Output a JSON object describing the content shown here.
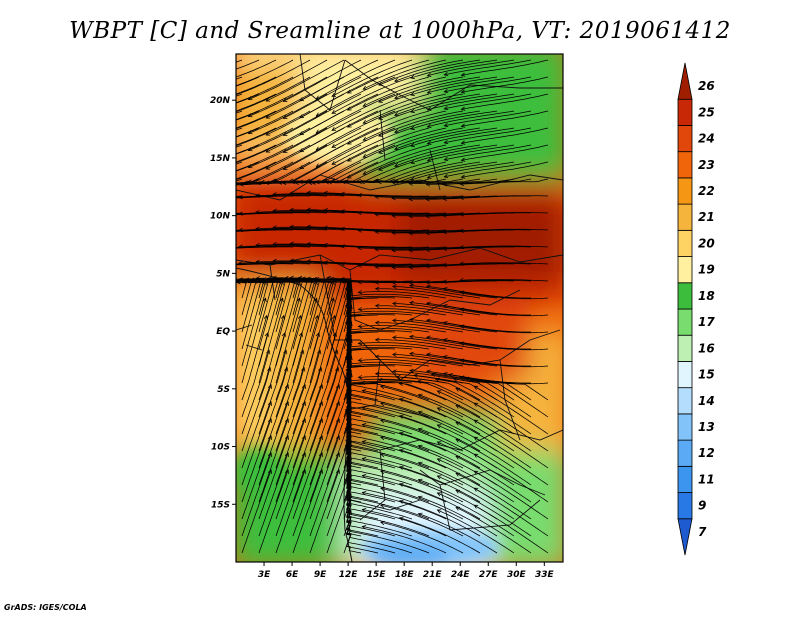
{
  "title": "WBPT [C] and Sreamline at 1000hPa, VT: 2019061412",
  "footer": "GrADS: IGES/COLA",
  "map": {
    "lon_range": [
      0,
      35
    ],
    "lat_range": [
      -20,
      24
    ],
    "y_ticks": [
      {
        "lat": 20,
        "label": "20N"
      },
      {
        "lat": 15,
        "label": "15N"
      },
      {
        "lat": 10,
        "label": "10N"
      },
      {
        "lat": 5,
        "label": "5N"
      },
      {
        "lat": 0,
        "label": "EQ"
      },
      {
        "lat": -5,
        "label": "5S"
      },
      {
        "lat": -10,
        "label": "10S"
      },
      {
        "lat": -15,
        "label": "15S"
      }
    ],
    "x_ticks": [
      {
        "lon": 3,
        "label": "3E"
      },
      {
        "lon": 6,
        "label": "6E"
      },
      {
        "lon": 9,
        "label": "9E"
      },
      {
        "lon": 12,
        "label": "12E"
      },
      {
        "lon": 15,
        "label": "15E"
      },
      {
        "lon": 18,
        "label": "18E"
      },
      {
        "lon": 21,
        "label": "21E"
      },
      {
        "lon": 24,
        "label": "24E"
      },
      {
        "lon": 27,
        "label": "27E"
      },
      {
        "lon": 30,
        "label": "30E"
      },
      {
        "lon": 33,
        "label": "33E"
      }
    ]
  },
  "colorbar": {
    "labels": [
      "7",
      "9",
      "11",
      "12",
      "13",
      "14",
      "15",
      "16",
      "17",
      "18",
      "19",
      "20",
      "21",
      "22",
      "23",
      "24",
      "25",
      "26"
    ],
    "colors": [
      "#1e5ad0",
      "#2878e6",
      "#3c96f0",
      "#5aaaf5",
      "#82c4fa",
      "#b4dcfc",
      "#e1f5ff",
      "#bef0b4",
      "#78dc6e",
      "#3cbe3c",
      "#fff0a0",
      "#ffd264",
      "#f5b43c",
      "#f59614",
      "#f0640a",
      "#e1460a",
      "#c82805",
      "#a01e00"
    ]
  }
}
